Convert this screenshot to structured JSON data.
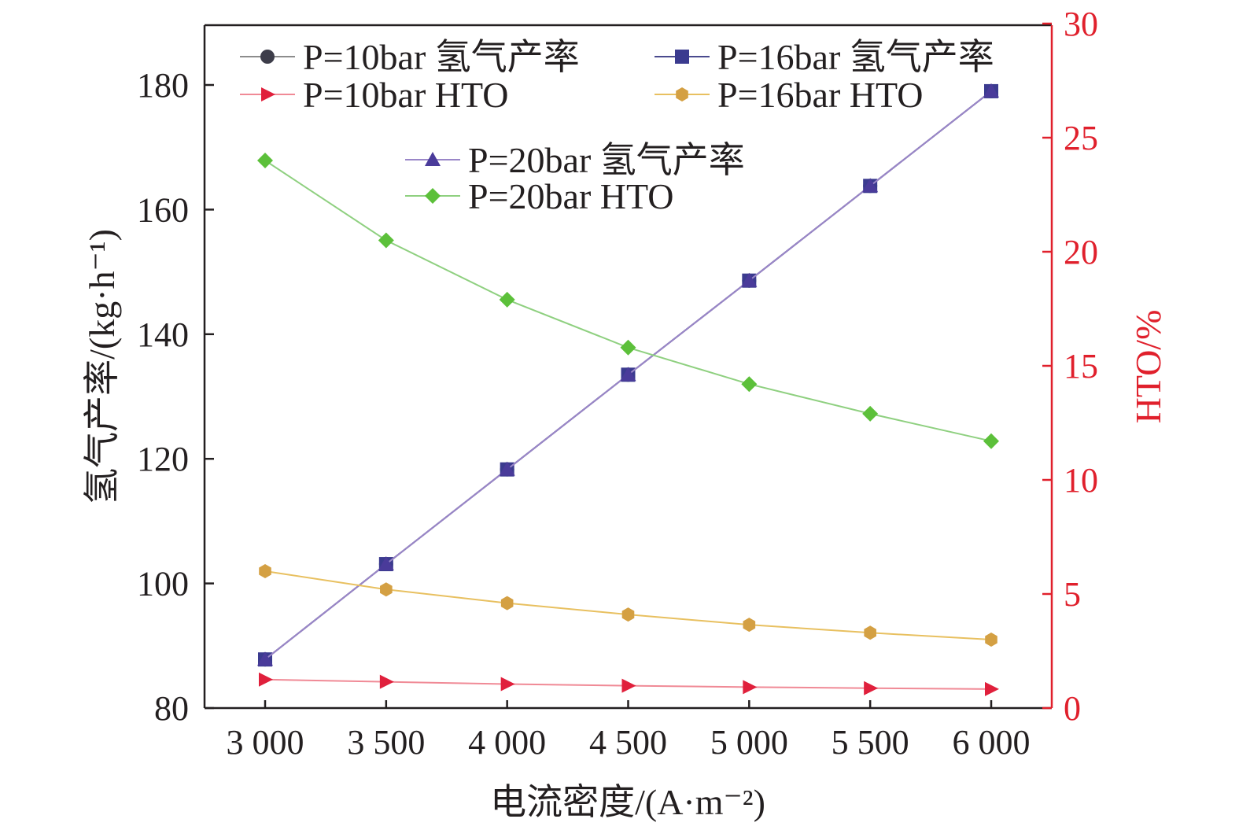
{
  "chart_data": {
    "type": "line",
    "x": [
      3000,
      3500,
      4000,
      4500,
      5000,
      5500,
      6000
    ],
    "x_tick_labels": [
      "3 000",
      "3 500",
      "4 000",
      "4 500",
      "5 000",
      "5 500",
      "6 000"
    ],
    "xlabel": "电流密度/(A·m⁻²)",
    "ylabel": "氢气产率/(kg·h⁻¹)",
    "ylim": [
      80,
      190
    ],
    "yticks": [
      80,
      100,
      120,
      140,
      160,
      180
    ],
    "y2label": "HTO/%",
    "y2lim": [
      0,
      30
    ],
    "y2ticks": [
      0,
      5,
      10,
      15,
      20,
      25,
      30
    ],
    "left_axis_color": "#231f20",
    "right_axis_color": "#e0202c",
    "grid": false,
    "legend_position": "top",
    "series": [
      {
        "name": "P=10bar 氢气产率",
        "axis": "left",
        "marker": "circle",
        "color": "#8c8c8c",
        "marker_color": "#3d3d4a",
        "values": [
          87.8,
          103.1,
          118.3,
          133.5,
          148.6,
          163.8,
          179.0
        ]
      },
      {
        "name": "P=16bar 氢气产率",
        "axis": "left",
        "marker": "square",
        "color": "#4a4a8e",
        "marker_color": "#3b3b8f",
        "values": [
          87.8,
          103.1,
          118.3,
          133.5,
          148.6,
          163.8,
          179.0
        ]
      },
      {
        "name": "P=20bar 氢气产率",
        "axis": "left",
        "marker": "triangle",
        "color": "#9a86c8",
        "marker_color": "#4a3b9a",
        "values": [
          87.8,
          103.1,
          118.3,
          133.5,
          148.6,
          163.8,
          179.0
        ]
      },
      {
        "name": "P=10bar HTO",
        "axis": "right",
        "marker": "triangle-right",
        "color": "#f08a96",
        "marker_color": "#e0203c",
        "values": [
          1.25,
          1.15,
          1.05,
          0.98,
          0.92,
          0.87,
          0.83
        ]
      },
      {
        "name": "P=16bar HTO",
        "axis": "right",
        "marker": "hexagon",
        "color": "#e8c060",
        "marker_color": "#d4a043",
        "values": [
          6.0,
          5.2,
          4.6,
          4.1,
          3.65,
          3.3,
          3.0
        ]
      },
      {
        "name": "P=20bar HTO",
        "axis": "right",
        "marker": "diamond",
        "color": "#8fd080",
        "marker_color": "#5cc03a",
        "values": [
          24.0,
          20.5,
          17.9,
          15.8,
          14.2,
          12.9,
          11.7
        ]
      }
    ]
  }
}
